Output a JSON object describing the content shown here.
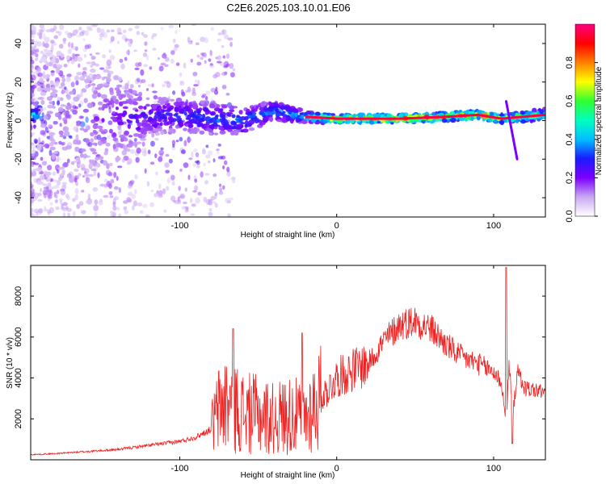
{
  "title": "C2E6.2025.103.10.01.E06",
  "chart_data": [
    {
      "type": "heatmap",
      "xlabel": "Height of straight line (km)",
      "ylabel": "Frequency (Hz)",
      "xlim": [
        -195,
        133
      ],
      "ylim": [
        -50,
        50
      ],
      "x_ticks": [
        -100,
        0,
        100
      ],
      "y_ticks": [
        -40,
        -20,
        0,
        20,
        40
      ],
      "x_tick_labels": [
        "-100",
        "0",
        "100"
      ],
      "y_tick_labels": [
        "-40",
        "-20",
        "0",
        "20",
        "40"
      ],
      "colorbar": {
        "label": "Normalized spectral amplitude",
        "range": [
          0,
          1
        ],
        "ticks": [
          0,
          0.2,
          0.4,
          0.6,
          0.8
        ],
        "tick_labels": [
          "0.0",
          "0.2",
          "0.4",
          "0.6",
          "0.8"
        ],
        "colormap": [
          "#ffffff",
          "#c9a8f3",
          "#7c00ff",
          "#1a1aff",
          "#00bfff",
          "#00ffc0",
          "#30ff30",
          "#ffff00",
          "#ff8000",
          "#ff0000",
          "#ff0080"
        ]
      },
      "ridge": [
        {
          "x": -190,
          "freq": 0,
          "amp": 0.12,
          "spread": 40
        },
        {
          "x": -150,
          "freq": 1,
          "amp": 0.2,
          "spread": 28
        },
        {
          "x": -120,
          "freq": 2,
          "amp": 0.3,
          "spread": 10
        },
        {
          "x": -100,
          "freq": 3,
          "amp": 0.35,
          "spread": 8
        },
        {
          "x": -80,
          "freq": 1,
          "amp": 0.38,
          "spread": 8
        },
        {
          "x": -60,
          "freq": 0,
          "amp": 0.4,
          "spread": 7
        },
        {
          "x": -40,
          "freq": 5,
          "amp": 0.4,
          "spread": 5
        },
        {
          "x": -20,
          "freq": 2,
          "amp": 0.5,
          "spread": 3
        },
        {
          "x": 0,
          "freq": 1,
          "amp": 0.9,
          "spread": 2
        },
        {
          "x": 40,
          "freq": 1,
          "amp": 0.95,
          "spread": 2
        },
        {
          "x": 70,
          "freq": 2,
          "amp": 0.95,
          "spread": 2
        },
        {
          "x": 90,
          "freq": 3,
          "amp": 0.95,
          "spread": 2
        },
        {
          "x": 105,
          "freq": 1,
          "amp": 0.9,
          "spread": 2
        },
        {
          "x": 133,
          "freq": 3,
          "amp": 0.6,
          "spread": 3
        }
      ],
      "features": [
        {
          "x": 108,
          "freq": 10,
          "x2": 115,
          "freq2": -20,
          "amp": 0.2
        }
      ]
    },
    {
      "type": "line",
      "xlabel": "Height of straight line (km)",
      "ylabel": "SNR (10 * v/v)",
      "xlim": [
        -195,
        133
      ],
      "ylim": [
        0,
        9500
      ],
      "x_ticks": [
        -100,
        0,
        100
      ],
      "y_ticks": [
        2000,
        4000,
        6000,
        8000
      ],
      "x_tick_labels": [
        "-100",
        "0",
        "100"
      ],
      "y_tick_labels": [
        "2000",
        "4000",
        "6000",
        "8000"
      ],
      "series": [
        {
          "color": "#ef2020",
          "x": [
            -195,
            -180,
            -160,
            -140,
            -120,
            -100,
            -90,
            -80,
            -75,
            -70,
            -65,
            -60,
            -50,
            -40,
            -30,
            -20,
            -15,
            -10,
            -5,
            0,
            10,
            20,
            30,
            40,
            50,
            60,
            70,
            80,
            90,
            100,
            105,
            108,
            110,
            112,
            115,
            120,
            133
          ],
          "y": [
            250,
            300,
            400,
            500,
            700,
            900,
            1100,
            1500,
            2500,
            2800,
            2600,
            2300,
            2200,
            2000,
            2200,
            2000,
            2600,
            3000,
            3500,
            4000,
            4400,
            4700,
            5800,
            6600,
            6800,
            6400,
            5600,
            5000,
            4700,
            4300,
            3800,
            1600,
            4800,
            2000,
            4300,
            3500,
            3300
          ]
        }
      ],
      "spikes": [
        {
          "x": -66,
          "y": 6400
        },
        {
          "x": -22,
          "y": 6200
        },
        {
          "x": 108,
          "y": 9400
        },
        {
          "x": 112,
          "y": 800
        }
      ]
    }
  ]
}
